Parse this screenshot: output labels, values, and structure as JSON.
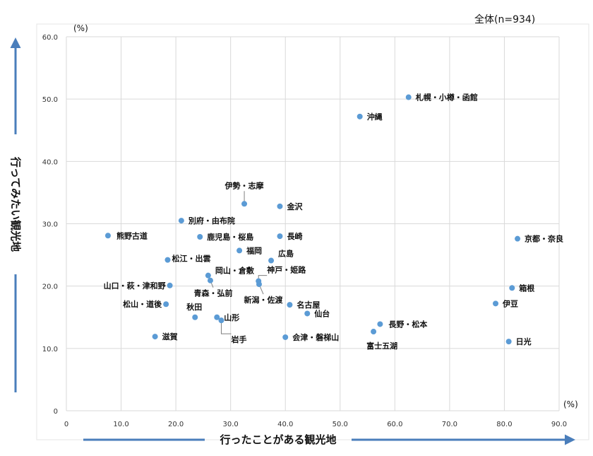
{
  "chart_data": {
    "type": "scatter",
    "title": "",
    "note": "全体(n=934)",
    "xlabel": "行ったことがある観光地",
    "ylabel": "行ってみたい観光地",
    "x_unit": "(%)",
    "y_unit": "(%)",
    "xlim": [
      0,
      90
    ],
    "ylim": [
      0,
      60
    ],
    "xticks": [
      "0",
      "10.0",
      "20.0",
      "30.0",
      "40.0",
      "50.0",
      "60.0",
      "70.0",
      "80.0",
      "90.0"
    ],
    "yticks": [
      "0",
      "10.0",
      "20.0",
      "30.0",
      "40.0",
      "50.0",
      "60.0"
    ],
    "grid": true,
    "colors": {
      "point": "#5b9bd5",
      "arrow": "#4a7ebb",
      "grid": "#d9d9d9"
    },
    "points": [
      {
        "name": "札幌・小樽・函館",
        "x": 62.5,
        "y": 50.3
      },
      {
        "name": "沖縄",
        "x": 53.6,
        "y": 47.2
      },
      {
        "name": "伊勢・志摩",
        "x": 32.5,
        "y": 33.2
      },
      {
        "name": "金沢",
        "x": 39.0,
        "y": 32.8
      },
      {
        "name": "別府・由布院",
        "x": 21.0,
        "y": 30.5
      },
      {
        "name": "熊野古道",
        "x": 7.6,
        "y": 28.1
      },
      {
        "name": "鹿児島・桜島",
        "x": 24.4,
        "y": 27.9
      },
      {
        "name": "長崎",
        "x": 39.0,
        "y": 28.0
      },
      {
        "name": "京都・奈良",
        "x": 82.4,
        "y": 27.6
      },
      {
        "name": "福岡",
        "x": 31.6,
        "y": 25.7
      },
      {
        "name": "広島",
        "x": 37.4,
        "y": 24.1
      },
      {
        "name": "松江・出雲",
        "x": 18.5,
        "y": 24.2
      },
      {
        "name": "岡山・倉敷",
        "x": 25.9,
        "y": 21.7
      },
      {
        "name": "青森・弘前",
        "x": 26.3,
        "y": 20.9
      },
      {
        "name": "神戸・姫路",
        "x": 35.1,
        "y": 20.8
      },
      {
        "name": "新潟・佐渡",
        "x": 35.2,
        "y": 20.3
      },
      {
        "name": "山口・萩・津和野",
        "x": 18.9,
        "y": 20.1
      },
      {
        "name": "箱根",
        "x": 81.4,
        "y": 19.7
      },
      {
        "name": "松山・道後",
        "x": 18.2,
        "y": 17.1
      },
      {
        "name": "伊豆",
        "x": 78.4,
        "y": 17.2
      },
      {
        "name": "名古屋",
        "x": 40.8,
        "y": 17.0
      },
      {
        "name": "仙台",
        "x": 44.0,
        "y": 15.6
      },
      {
        "name": "秋田",
        "x": 23.5,
        "y": 15.0
      },
      {
        "name": "山形",
        "x": 27.5,
        "y": 15.0
      },
      {
        "name": "岩手",
        "x": 28.3,
        "y": 14.5
      },
      {
        "name": "長野・松本",
        "x": 57.3,
        "y": 13.9
      },
      {
        "name": "富士五湖",
        "x": 56.1,
        "y": 12.7
      },
      {
        "name": "滋賀",
        "x": 16.2,
        "y": 11.9
      },
      {
        "name": "会津・磐梯山",
        "x": 40.0,
        "y": 11.8
      },
      {
        "name": "日光",
        "x": 80.8,
        "y": 11.1
      }
    ]
  }
}
